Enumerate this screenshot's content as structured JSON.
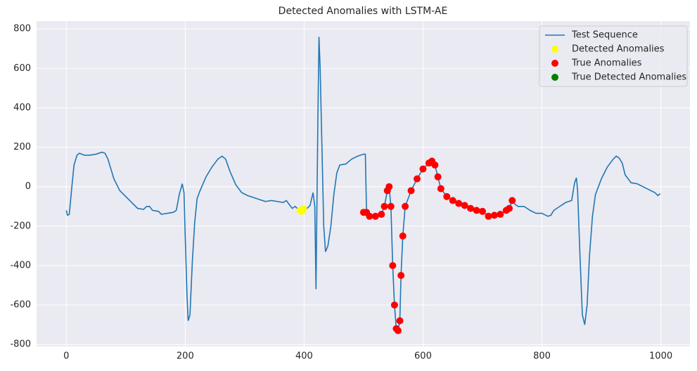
{
  "chart_data": {
    "type": "line",
    "title": "Detected Anomalies with LSTM-AE",
    "xlim": [
      -50,
      1049
    ],
    "ylim": [
      -810,
      840
    ],
    "xticks": [
      0,
      200,
      400,
      600,
      800,
      1000
    ],
    "yticks": [
      -800,
      -600,
      -400,
      -200,
      0,
      200,
      400,
      600,
      800
    ],
    "grid": true,
    "legend": "upper right",
    "series": [
      {
        "name": "Test Sequence",
        "color": "#1f77b4",
        "kind": "line",
        "x": [
          0,
          2,
          5,
          10,
          13,
          18,
          22,
          30,
          40,
          50,
          60,
          65,
          70,
          75,
          80,
          90,
          100,
          110,
          120,
          130,
          135,
          140,
          145,
          155,
          160,
          170,
          180,
          185,
          190,
          195,
          198,
          200,
          203,
          205,
          208,
          212,
          216,
          220,
          225,
          235,
          245,
          255,
          262,
          268,
          275,
          285,
          295,
          305,
          315,
          325,
          335,
          345,
          355,
          365,
          370,
          375,
          380,
          385,
          390,
          395,
          400,
          405,
          410,
          415,
          418,
          420,
          423,
          425,
          427,
          430,
          433,
          436,
          440,
          445,
          450,
          455,
          460,
          470,
          480,
          490,
          500,
          503,
          505,
          510,
          520,
          530,
          535,
          540,
          543,
          546,
          549,
          552,
          555,
          558,
          561,
          563,
          566,
          570,
          580,
          590,
          600,
          610,
          615,
          620,
          625,
          630,
          640,
          650,
          660,
          670,
          680,
          690,
          700,
          710,
          720,
          730,
          740,
          745,
          750,
          755,
          760,
          770,
          780,
          790,
          800,
          810,
          815,
          820,
          830,
          840,
          850,
          855,
          858,
          860,
          864,
          868,
          872,
          876,
          880,
          885,
          890,
          900,
          910,
          920,
          925,
          930,
          935,
          940,
          950,
          960,
          970,
          980,
          990,
          995,
          999
        ],
        "values": [
          -120,
          -145,
          -140,
          20,
          110,
          160,
          170,
          160,
          160,
          165,
          175,
          170,
          140,
          90,
          40,
          -20,
          -50,
          -80,
          -110,
          -115,
          -100,
          -100,
          -120,
          -125,
          -140,
          -135,
          -130,
          -120,
          -40,
          15,
          -30,
          -250,
          -550,
          -680,
          -650,
          -380,
          -180,
          -60,
          -20,
          50,
          100,
          140,
          155,
          140,
          80,
          10,
          -30,
          -45,
          -55,
          -65,
          -75,
          -70,
          -75,
          -80,
          -70,
          -90,
          -110,
          -100,
          -115,
          -125,
          -110,
          -110,
          -95,
          -30,
          -100,
          -520,
          300,
          760,
          600,
          200,
          -200,
          -330,
          -300,
          -200,
          -40,
          70,
          110,
          115,
          140,
          155,
          165,
          165,
          -130,
          -150,
          -150,
          -140,
          -100,
          -20,
          0,
          -100,
          -400,
          -600,
          -720,
          -730,
          -680,
          -450,
          -250,
          -100,
          -20,
          40,
          90,
          120,
          130,
          110,
          50,
          -10,
          -50,
          -70,
          -85,
          -95,
          -110,
          -120,
          -125,
          -150,
          -145,
          -140,
          -120,
          -110,
          -70,
          -90,
          -100,
          -100,
          -120,
          -135,
          -135,
          -150,
          -145,
          -120,
          -100,
          -80,
          -70,
          20,
          45,
          -20,
          -350,
          -650,
          -700,
          -600,
          -350,
          -150,
          -40,
          40,
          100,
          140,
          155,
          145,
          120,
          60,
          20,
          15,
          0,
          -15,
          -30,
          -45,
          -35
        ]
      },
      {
        "name": "Detected Anomalies",
        "color": "#ffff00",
        "kind": "scatter",
        "x": [
          393,
          396,
          399
        ],
        "values": [
          -120,
          -125,
          -112
        ]
      },
      {
        "name": "True Anomalies",
        "color": "#ff0000",
        "kind": "scatter",
        "x": [
          500,
          505,
          510,
          520,
          530,
          535,
          540,
          543,
          546,
          549,
          552,
          555,
          558,
          561,
          563,
          566,
          570,
          580,
          590,
          600,
          610,
          615,
          620,
          625,
          630,
          640,
          650,
          660,
          670,
          680,
          690,
          700,
          710,
          720,
          730,
          740,
          745,
          750
        ],
        "values": [
          -130,
          -130,
          -150,
          -150,
          -140,
          -100,
          -20,
          0,
          -100,
          -400,
          -600,
          -720,
          -730,
          -680,
          -450,
          -250,
          -100,
          -20,
          40,
          90,
          120,
          130,
          110,
          50,
          -10,
          -50,
          -70,
          -85,
          -95,
          -110,
          -120,
          -125,
          -150,
          -145,
          -140,
          -120,
          -110,
          -70
        ]
      },
      {
        "name": "True Detected Anomalies",
        "color": "#008000",
        "kind": "scatter",
        "x": [],
        "values": []
      }
    ]
  }
}
